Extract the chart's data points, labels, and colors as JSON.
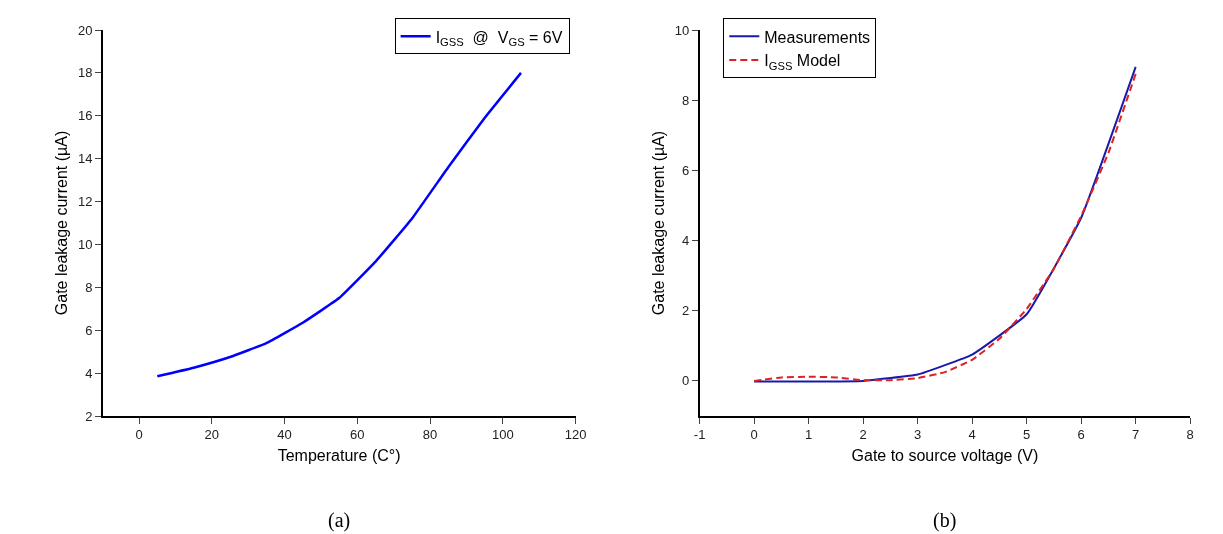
{
  "chart_data": [
    {
      "type": "line",
      "xlabel": "Temperature (C°)",
      "ylabel": "Gate leakage current (µA)",
      "annotations": [
        "(a)"
      ],
      "x": [
        5,
        15,
        25,
        35,
        45,
        55,
        65,
        75,
        85,
        95,
        105
      ],
      "series": [
        {
          "name": "I$_{GSS}$  @  V$_{GS}$ = 6V",
          "color": "#0000ff",
          "values": [
            3.85,
            4.25,
            4.75,
            5.4,
            6.35,
            7.5,
            9.2,
            11.2,
            13.6,
            15.9,
            18.0
          ]
        }
      ],
      "xlim": [
        -10,
        120
      ],
      "xticks": [
        0,
        20,
        40,
        60,
        80,
        100,
        120
      ],
      "ylim": [
        2,
        20
      ],
      "yticks": [
        2,
        4,
        6,
        8,
        10,
        12,
        14,
        16,
        18,
        20
      ],
      "legend": "top right",
      "line_style": "solid",
      "marker": "none"
    },
    {
      "type": "line",
      "xlabel": "Gate to source voltage (V)",
      "ylabel": "Gate leakage current (µA)",
      "annotations": [
        "(b)"
      ],
      "series": [
        {
          "name": "Measurements",
          "color": "#1a1aaa",
          "line_style": "solid",
          "x": [
            0,
            1,
            2,
            3,
            4,
            5,
            6,
            7
          ],
          "values": [
            -0.02,
            -0.02,
            0.0,
            0.18,
            0.75,
            1.9,
            4.65,
            8.95
          ]
        },
        {
          "name": "I$_{GSS}$ Model",
          "color": "#dd2222",
          "line_style": "dashed",
          "x": [
            0,
            0.5,
            1,
            1.5,
            2,
            2.5,
            3,
            3.5,
            4,
            4.5,
            5,
            5.5,
            6,
            6.5,
            7
          ],
          "values": [
            0.0,
            0.1,
            0.12,
            0.1,
            0.02,
            0.02,
            0.08,
            0.25,
            0.6,
            1.2,
            2.05,
            3.2,
            4.7,
            6.5,
            8.75
          ]
        }
      ],
      "xlim": [
        -1,
        8
      ],
      "xticks": [
        -1,
        0,
        1,
        2,
        3,
        4,
        5,
        6,
        7,
        8
      ],
      "ylim": [
        -1,
        10
      ],
      "yticks": [
        0,
        2,
        4,
        6,
        8,
        10
      ],
      "legend": "top left",
      "marker": "none"
    }
  ]
}
